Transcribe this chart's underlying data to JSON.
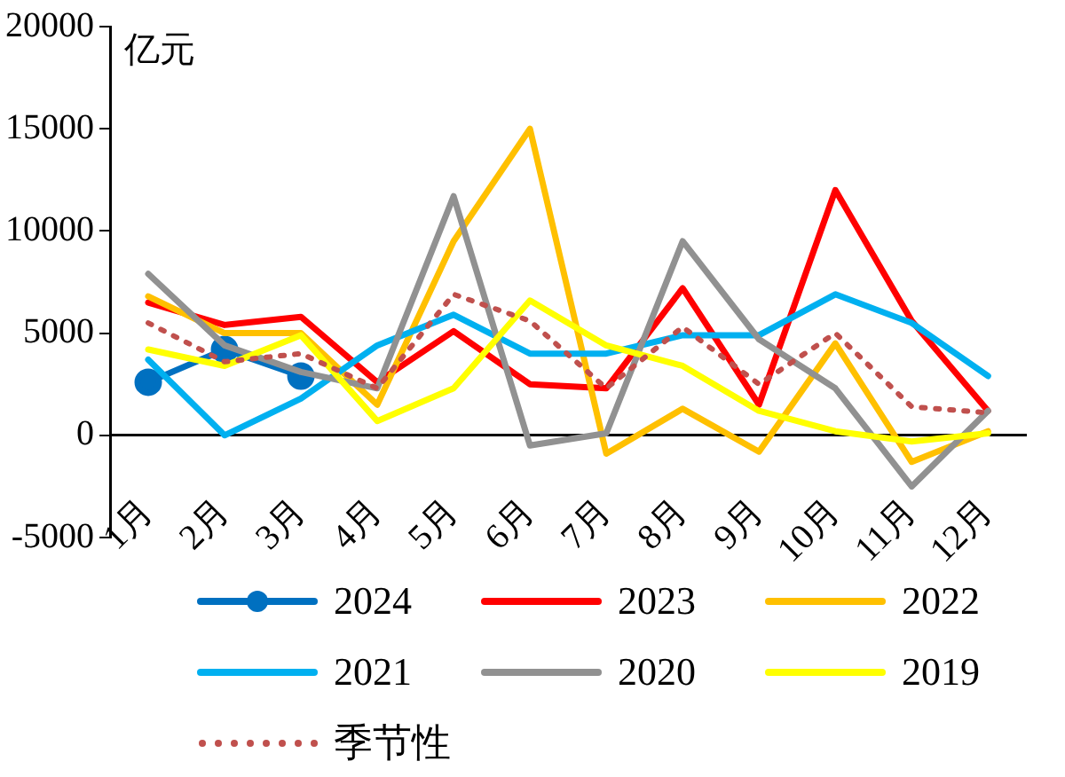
{
  "chart_data": {
    "type": "line",
    "ylabel": "亿元",
    "categories": [
      "1月",
      "2月",
      "3月",
      "4月",
      "5月",
      "6月",
      "7月",
      "8月",
      "9月",
      "10月",
      "11月",
      "12月"
    ],
    "ylim": [
      -5000,
      20000
    ],
    "yticks": [
      -5000,
      0,
      5000,
      10000,
      15000,
      20000
    ],
    "grid": false,
    "legend": "bottom",
    "line_style": "solid",
    "series": [
      {
        "name": "2024",
        "color": "#0070c0",
        "marker": "circle",
        "values": [
          2600,
          4200,
          2900,
          null,
          null,
          null,
          null,
          null,
          null,
          null,
          null,
          null
        ]
      },
      {
        "name": "2023",
        "color": "#ff0000",
        "values": [
          6500,
          5400,
          5800,
          2600,
          5100,
          2500,
          2300,
          7200,
          1500,
          12000,
          5600,
          1200
        ]
      },
      {
        "name": "2022",
        "color": "#ffc000",
        "values": [
          6800,
          5000,
          5000,
          1500,
          9500,
          15000,
          -900,
          1300,
          -800,
          4500,
          -1300,
          200
        ]
      },
      {
        "name": "2021",
        "color": "#00b0f0",
        "values": [
          3700,
          0,
          1800,
          4400,
          5900,
          4000,
          4000,
          4900,
          4900,
          6900,
          5500,
          2900
        ]
      },
      {
        "name": "2020",
        "color": "#919191",
        "values": [
          7900,
          4400,
          3100,
          2300,
          11700,
          -500,
          100,
          9500,
          4700,
          2300,
          -2500,
          1200
        ]
      },
      {
        "name": "2019",
        "color": "#ffff00",
        "values": [
          4200,
          3400,
          4900,
          700,
          2300,
          6600,
          4400,
          3400,
          1200,
          200,
          -300,
          100
        ]
      },
      {
        "name": "季节性",
        "color": "#c0504d",
        "line_style": "dotted",
        "values": [
          5500,
          3600,
          4000,
          2300,
          6900,
          5600,
          2300,
          5300,
          2500,
          5000,
          1400,
          1100
        ]
      }
    ]
  }
}
